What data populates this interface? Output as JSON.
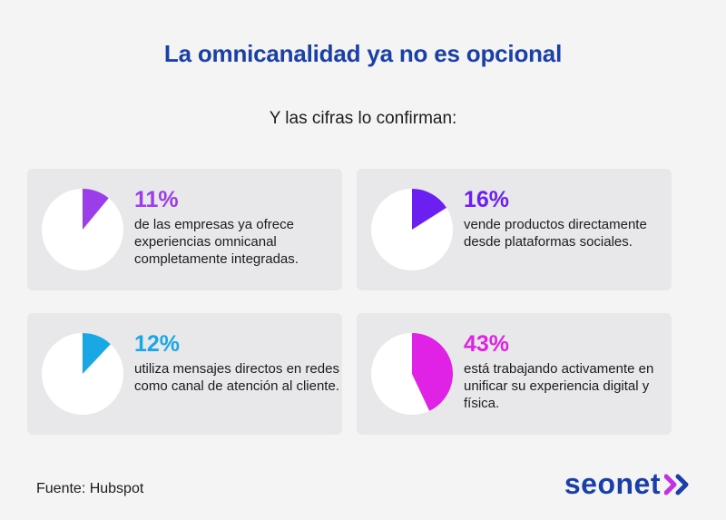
{
  "title": "La omnicanalidad ya no es opcional",
  "subtitle": "Y las cifras lo confirman:",
  "cards": [
    {
      "percent_label": "11%",
      "percent": 11,
      "color": "#9b3de8",
      "description": "de las empresas ya ofrece experiencias omnicanal completamente integradas."
    },
    {
      "percent_label": "16%",
      "percent": 16,
      "color": "#6b1ff0",
      "description": "vende productos directamente desde plataformas sociales."
    },
    {
      "percent_label": "12%",
      "percent": 12,
      "color": "#1aa7e6",
      "description": "utiliza mensajes directos en redes como canal de atención al cliente."
    },
    {
      "percent_label": "43%",
      "percent": 43,
      "color": "#e021e6",
      "description": "está trabajando activamente en unificar su experiencia digital y física."
    }
  ],
  "source": "Fuente: Hubspot",
  "logo": {
    "text": "seonet",
    "icon": "double-chevron-right-icon",
    "color": "#1a3fa6",
    "accent": "#c330e6"
  }
}
